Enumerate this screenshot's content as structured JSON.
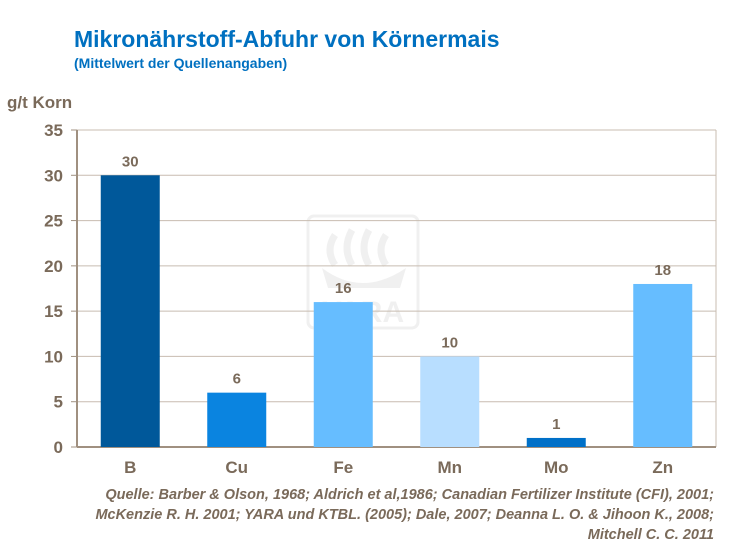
{
  "title": "Mikronährstoff-Abfuhr von Körnermais",
  "subtitle": "(Mittelwert der Quellenangaben)",
  "watermark": "YARA",
  "source_lines": [
    "Quelle: Barber & Olson, 1968; Aldrich et al,1986; Canadian Fertilizer Institute (CFI), 2001;",
    "McKenzie R. H. 2001; YARA und KTBL. (2005); Dale, 2007; Deanna L. O. & Jihoon K.,  2008;",
    "Mitchell C. C. 2011"
  ],
  "chart_data": {
    "type": "bar",
    "ylabel": "g/t Korn",
    "categories": [
      "B",
      "Cu",
      "Fe",
      "Mn",
      "Mo",
      "Zn"
    ],
    "values": [
      30,
      6,
      16,
      10,
      1,
      18
    ],
    "data_labels": [
      "30",
      "6",
      "16",
      "10",
      "1",
      "18"
    ],
    "colors": [
      "#00589A",
      "#0A84E0",
      "#66BDFF",
      "#B8DEFF",
      "#0070C8",
      "#66BDFF"
    ],
    "ylim": [
      0,
      35
    ],
    "yticks": [
      0,
      5,
      10,
      15,
      20,
      25,
      30,
      35
    ],
    "grid": true
  }
}
